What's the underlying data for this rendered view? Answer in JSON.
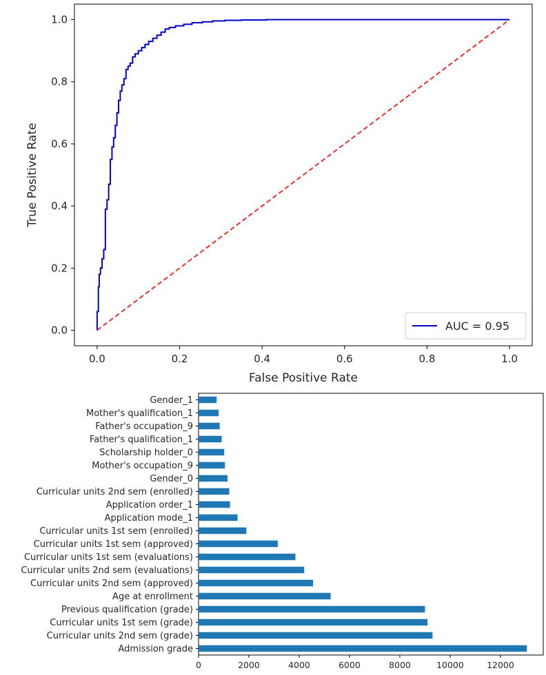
{
  "chart_data": [
    {
      "type": "line",
      "title": "",
      "xlabel": "False Positive Rate",
      "ylabel": "True Positive Rate",
      "xlim": [
        -0.055,
        1.055
      ],
      "ylim": [
        -0.05,
        1.05
      ],
      "x_ticks": [
        0.0,
        0.2,
        0.4,
        0.6,
        0.8,
        1.0
      ],
      "y_ticks": [
        0.0,
        0.2,
        0.4,
        0.6,
        0.8,
        1.0
      ],
      "x_tick_labels": [
        "0.0",
        "0.2",
        "0.4",
        "0.6",
        "0.8",
        "1.0"
      ],
      "y_tick_labels": [
        "0.0",
        "0.2",
        "0.4",
        "0.6",
        "0.8",
        "1.0"
      ],
      "grid": false,
      "legend": {
        "position": "lower-right",
        "entries": [
          {
            "label": "AUC = 0.95",
            "series": "roc"
          }
        ]
      },
      "series": [
        {
          "name": "roc",
          "label": "AUC = 0.95",
          "color": "#0000cc",
          "style": "solid",
          "x": [
            0.0,
            0.0,
            0.003,
            0.003,
            0.005,
            0.005,
            0.008,
            0.008,
            0.012,
            0.012,
            0.016,
            0.016,
            0.02,
            0.02,
            0.024,
            0.024,
            0.028,
            0.028,
            0.032,
            0.032,
            0.036,
            0.036,
            0.04,
            0.04,
            0.044,
            0.044,
            0.048,
            0.048,
            0.052,
            0.052,
            0.056,
            0.056,
            0.06,
            0.06,
            0.065,
            0.065,
            0.07,
            0.07,
            0.075,
            0.075,
            0.08,
            0.08,
            0.086,
            0.086,
            0.092,
            0.092,
            0.1,
            0.1,
            0.108,
            0.108,
            0.116,
            0.116,
            0.125,
            0.125,
            0.135,
            0.135,
            0.145,
            0.145,
            0.155,
            0.155,
            0.165,
            0.165,
            0.175,
            0.175,
            0.19,
            0.19,
            0.21,
            0.21,
            0.23,
            0.23,
            0.255,
            0.255,
            0.28,
            0.28,
            0.31,
            0.31,
            0.35,
            0.35,
            0.41,
            0.41,
            1.0
          ],
          "y": [
            0.0,
            0.06,
            0.06,
            0.14,
            0.14,
            0.18,
            0.18,
            0.2,
            0.2,
            0.23,
            0.23,
            0.26,
            0.26,
            0.39,
            0.39,
            0.42,
            0.42,
            0.47,
            0.47,
            0.55,
            0.55,
            0.59,
            0.59,
            0.62,
            0.62,
            0.66,
            0.66,
            0.7,
            0.7,
            0.74,
            0.74,
            0.77,
            0.77,
            0.79,
            0.79,
            0.81,
            0.81,
            0.84,
            0.84,
            0.85,
            0.85,
            0.86,
            0.86,
            0.88,
            0.88,
            0.89,
            0.89,
            0.9,
            0.9,
            0.91,
            0.91,
            0.92,
            0.92,
            0.93,
            0.93,
            0.94,
            0.94,
            0.95,
            0.95,
            0.96,
            0.96,
            0.97,
            0.97,
            0.975,
            0.975,
            0.98,
            0.98,
            0.985,
            0.985,
            0.99,
            0.99,
            0.993,
            0.993,
            0.996,
            0.996,
            0.998,
            0.998,
            0.999,
            0.999,
            1.0,
            1.0
          ]
        },
        {
          "name": "chance",
          "label": "",
          "color": "#e8302a",
          "style": "dashed",
          "x": [
            0.0,
            1.0
          ],
          "y": [
            0.0,
            1.0
          ]
        }
      ]
    },
    {
      "type": "bar",
      "orientation": "horizontal",
      "title": "",
      "xlabel": "",
      "ylabel": "",
      "xlim": [
        0,
        13700
      ],
      "x_ticks": [
        0,
        2000,
        4000,
        6000,
        8000,
        10000,
        12000
      ],
      "x_tick_labels": [
        "0",
        "2000",
        "4000",
        "6000",
        "8000",
        "10000",
        "12000"
      ],
      "grid": false,
      "bar_color": "#1f77b4",
      "categories": [
        "Admission grade",
        "Curricular units 2nd sem (grade)",
        "Curricular units 1st sem (grade)",
        "Previous qualification (grade)",
        "Age at enrollment",
        "Curricular units 2nd sem (approved)",
        "Curricular units 2nd sem (evaluations)",
        "Curricular units 1st sem (evaluations)",
        "Curricular units 1st sem (approved)",
        "Curricular units 1st sem (enrolled)",
        "Application mode_1",
        "Application order_1",
        "Curricular units 2nd sem (enrolled)",
        "Gender_0",
        "Mother's occupation_9",
        "Scholarship holder_0",
        "Father's qualification_1",
        "Father's occupation_9",
        "Mother's qualification_1",
        "Gender_1"
      ],
      "values": [
        13050,
        9300,
        9100,
        9000,
        5250,
        4550,
        4200,
        3850,
        3150,
        1900,
        1550,
        1250,
        1220,
        1150,
        1050,
        1020,
        920,
        840,
        800,
        720
      ]
    }
  ]
}
